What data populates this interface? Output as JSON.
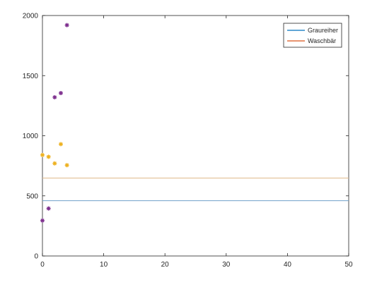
{
  "chart_data": {
    "type": "scatter",
    "title": "",
    "xlabel": "",
    "ylabel": "",
    "xlim": [
      0,
      50
    ],
    "ylim": [
      0,
      2000
    ],
    "xticks": [
      0,
      10,
      20,
      30,
      40,
      50
    ],
    "yticks": [
      0,
      500,
      1000,
      1500,
      2000
    ],
    "grid": false,
    "legend_position": "top-right",
    "legend": [
      {
        "label": "Graureiher",
        "color": "#0072BD"
      },
      {
        "label": "Waschbär",
        "color": "#D95319"
      }
    ],
    "hlines": [
      {
        "series": "Graureiher",
        "y": 460,
        "color": "#6f9fc8"
      },
      {
        "series": "Waschbär",
        "y": 648,
        "color": "#e0b98a"
      }
    ],
    "scatter": [
      {
        "color": "#7E2F8E",
        "marker": "asterisk",
        "x": [
          0,
          1,
          2,
          3,
          4
        ],
        "y": [
          295,
          395,
          1320,
          1355,
          1920
        ]
      },
      {
        "color": "#EDB120",
        "marker": "asterisk",
        "x": [
          0,
          1,
          2,
          3,
          4
        ],
        "y": [
          840,
          825,
          770,
          930,
          755
        ]
      }
    ]
  }
}
